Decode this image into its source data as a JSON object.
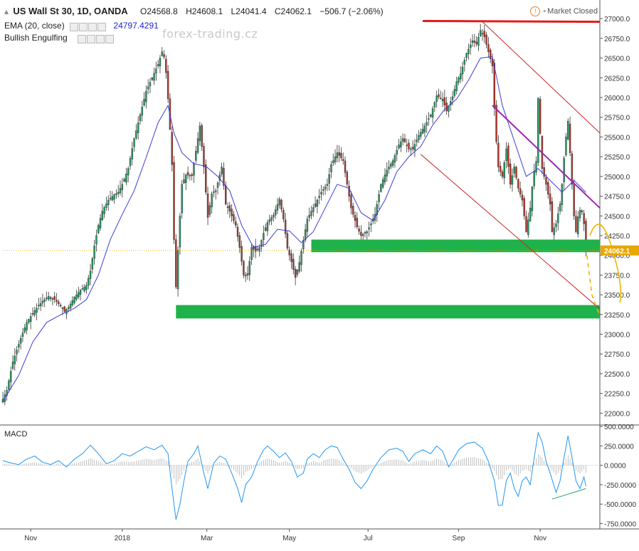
{
  "header": {
    "symbol": "US Wall St 30, 1D, OANDA",
    "open": "O24568.8",
    "high": "H24608.1",
    "low": "L24041.4",
    "close": "C24062.1",
    "change": "−506.7 (−2.06%)",
    "ema_label": "EMA (20, close)",
    "ema_value": "24797.4291",
    "pattern_label": "Bullish Engulfing",
    "watermark": "forex-trading.cz",
    "market_status": "Market Closed"
  },
  "macd": {
    "label": "MACD"
  },
  "colors": {
    "up": "#26a269",
    "down": "#c0392b",
    "ema": "#3c3cd6",
    "macd": "#2196f3",
    "resistance": "#e31b1b",
    "support": "#1fb24a",
    "channel": "#c62828",
    "trend": "#9c27b0",
    "projection": "#f0b400",
    "price_badge": "#e8a800"
  },
  "chart_data": [
    {
      "type": "candlestick",
      "title": "US Wall St 30, 1D, OANDA",
      "ylim": [
        21850,
        27200
      ],
      "y_ticks": [
        22000,
        22250,
        22500,
        22750,
        23000,
        23250,
        23500,
        23750,
        24000,
        24250,
        24500,
        24750,
        25000,
        25250,
        25500,
        25750,
        26000,
        26250,
        26500,
        26750,
        27000
      ],
      "y_tick_labels": [
        "22000.0",
        "22250.0",
        "22500.0",
        "22750.0",
        "23000.0",
        "23250.0",
        "23500.0",
        "23750.0",
        "24000.0",
        "24250.0",
        "24500.0",
        "24750.0",
        "25000.0",
        "25250.0",
        "25500.0",
        "25750.0",
        "26000.0",
        "26250.0",
        "26500.0",
        "26750.0",
        "27000.0"
      ],
      "x_labels": [
        "Nov",
        "2018",
        "Mar",
        "May",
        "Jul",
        "Sep",
        "Nov"
      ],
      "x_label_day_index": [
        28,
        120,
        205,
        288,
        367,
        458,
        540
      ],
      "total_days": 600,
      "current_price": "24062.1",
      "price_path": [
        [
          0,
          22180
        ],
        [
          4,
          22290
        ],
        [
          10,
          22650
        ],
        [
          18,
          22950
        ],
        [
          24,
          23150
        ],
        [
          32,
          23300
        ],
        [
          40,
          23420
        ],
        [
          46,
          23480
        ],
        [
          52,
          23440
        ],
        [
          58,
          23360
        ],
        [
          62,
          23290
        ],
        [
          66,
          23340
        ],
        [
          72,
          23470
        ],
        [
          78,
          23560
        ],
        [
          84,
          23620
        ],
        [
          88,
          23800
        ],
        [
          92,
          24120
        ],
        [
          96,
          24380
        ],
        [
          100,
          24560
        ],
        [
          106,
          24700
        ],
        [
          112,
          24770
        ],
        [
          116,
          24800
        ],
        [
          120,
          24900
        ],
        [
          126,
          25100
        ],
        [
          132,
          25480
        ],
        [
          138,
          25780
        ],
        [
          144,
          26080
        ],
        [
          150,
          26250
        ],
        [
          156,
          26420
        ],
        [
          160,
          26580
        ],
        [
          163,
          26480
        ],
        [
          167,
          25820
        ],
        [
          170,
          25150
        ],
        [
          172,
          24200
        ],
        [
          174,
          23600
        ],
        [
          177,
          24300
        ],
        [
          180,
          24900
        ],
        [
          184,
          25020
        ],
        [
          190,
          25010
        ],
        [
          194,
          25320
        ],
        [
          198,
          25640
        ],
        [
          202,
          25120
        ],
        [
          206,
          24480
        ],
        [
          210,
          24780
        ],
        [
          214,
          24820
        ],
        [
          220,
          25120
        ],
        [
          224,
          24650
        ],
        [
          228,
          24560
        ],
        [
          234,
          24380
        ],
        [
          238,
          24100
        ],
        [
          242,
          23750
        ],
        [
          246,
          23750
        ],
        [
          250,
          24100
        ],
        [
          254,
          24050
        ],
        [
          258,
          24100
        ],
        [
          262,
          24280
        ],
        [
          266,
          24420
        ],
        [
          272,
          24510
        ],
        [
          278,
          24710
        ],
        [
          282,
          24460
        ],
        [
          286,
          24090
        ],
        [
          290,
          23920
        ],
        [
          294,
          23720
        ],
        [
          298,
          23910
        ],
        [
          302,
          24190
        ],
        [
          306,
          24460
        ],
        [
          310,
          24560
        ],
        [
          316,
          24700
        ],
        [
          320,
          24800
        ],
        [
          326,
          24900
        ],
        [
          330,
          25150
        ],
        [
          336,
          25300
        ],
        [
          342,
          25200
        ],
        [
          346,
          24900
        ],
        [
          350,
          24600
        ],
        [
          356,
          24360
        ],
        [
          360,
          24250
        ],
        [
          366,
          24300
        ],
        [
          370,
          24400
        ],
        [
          374,
          24520
        ],
        [
          380,
          24900
        ],
        [
          386,
          25080
        ],
        [
          392,
          25200
        ],
        [
          398,
          25400
        ],
        [
          402,
          25480
        ],
        [
          408,
          25350
        ],
        [
          412,
          25350
        ],
        [
          418,
          25520
        ],
        [
          424,
          25640
        ],
        [
          430,
          25780
        ],
        [
          436,
          26020
        ],
        [
          442,
          25980
        ],
        [
          446,
          25830
        ],
        [
          452,
          26010
        ],
        [
          456,
          26200
        ],
        [
          460,
          26300
        ],
        [
          466,
          26560
        ],
        [
          472,
          26720
        ],
        [
          476,
          26680
        ],
        [
          480,
          26850
        ],
        [
          484,
          26770
        ],
        [
          488,
          26580
        ],
        [
          492,
          26400
        ],
        [
          495,
          25600
        ],
        [
          498,
          25120
        ],
        [
          502,
          25000
        ],
        [
          506,
          25350
        ],
        [
          510,
          24900
        ],
        [
          514,
          25120
        ],
        [
          518,
          24850
        ],
        [
          522,
          24700
        ],
        [
          526,
          24300
        ],
        [
          530,
          24600
        ],
        [
          533,
          25000
        ],
        [
          536,
          25190
        ],
        [
          538,
          25990
        ],
        [
          542,
          25100
        ],
        [
          546,
          24900
        ],
        [
          550,
          24650
        ],
        [
          552,
          24300
        ],
        [
          556,
          24400
        ],
        [
          560,
          24650
        ],
        [
          562,
          24900
        ],
        [
          565,
          25400
        ],
        [
          568,
          25700
        ],
        [
          570,
          25300
        ],
        [
          572,
          24900
        ],
        [
          574,
          24500
        ],
        [
          576,
          24300
        ],
        [
          579,
          24580
        ],
        [
          582,
          24550
        ],
        [
          584,
          24400
        ],
        [
          586,
          24062
        ]
      ],
      "ema_20_path": [
        [
          0,
          22150
        ],
        [
          16,
          22480
        ],
        [
          30,
          22900
        ],
        [
          44,
          23150
        ],
        [
          60,
          23260
        ],
        [
          72,
          23330
        ],
        [
          84,
          23440
        ],
        [
          96,
          23750
        ],
        [
          108,
          24200
        ],
        [
          120,
          24520
        ],
        [
          132,
          24820
        ],
        [
          144,
          25240
        ],
        [
          156,
          25680
        ],
        [
          166,
          25900
        ],
        [
          172,
          25550
        ],
        [
          180,
          25300
        ],
        [
          192,
          25160
        ],
        [
          204,
          25130
        ],
        [
          216,
          25000
        ],
        [
          228,
          24820
        ],
        [
          240,
          24380
        ],
        [
          252,
          24100
        ],
        [
          264,
          24140
        ],
        [
          276,
          24330
        ],
        [
          288,
          24310
        ],
        [
          300,
          24160
        ],
        [
          312,
          24300
        ],
        [
          324,
          24600
        ],
        [
          336,
          24900
        ],
        [
          348,
          24850
        ],
        [
          360,
          24540
        ],
        [
          372,
          24440
        ],
        [
          384,
          24700
        ],
        [
          396,
          25060
        ],
        [
          408,
          25250
        ],
        [
          420,
          25380
        ],
        [
          432,
          25650
        ],
        [
          444,
          25850
        ],
        [
          456,
          25980
        ],
        [
          468,
          26220
        ],
        [
          480,
          26500
        ],
        [
          492,
          26520
        ],
        [
          502,
          25900
        ],
        [
          514,
          25450
        ],
        [
          526,
          25000
        ],
        [
          538,
          25100
        ],
        [
          550,
          24950
        ],
        [
          562,
          24800
        ],
        [
          574,
          24950
        ],
        [
          586,
          24797
        ]
      ],
      "annotations": {
        "resistance_line": [
          [
            422,
            26970
          ],
          [
            600,
            26960
          ]
        ],
        "support_zones": [
          [
            310,
            24200,
            600,
            24040
          ],
          [
            174,
            23370,
            600,
            23200
          ]
        ],
        "channel_upper": [
          [
            482,
            26960
          ],
          [
            600,
            25550
          ]
        ],
        "channel_lower": [
          [
            420,
            25280
          ],
          [
            600,
            23320
          ]
        ],
        "falling_trendline": [
          [
            492,
            25900
          ],
          [
            600,
            24600
          ]
        ],
        "projection": [
          [
            590,
            24250
          ],
          [
            600,
            24600
          ],
          [
            612,
            24100
          ],
          [
            620,
            23400
          ]
        ]
      }
    },
    {
      "type": "line",
      "title": "MACD",
      "ylim": [
        -820,
        520
      ],
      "y_ticks": [
        500,
        250,
        0,
        -250,
        -500,
        -750
      ],
      "y_tick_labels": [
        "500.0000",
        "250.0000",
        "0.0000",
        "-250.0000",
        "-500.0000",
        "-750.0000"
      ],
      "macd_path": [
        [
          0,
          60
        ],
        [
          8,
          30
        ],
        [
          16,
          10
        ],
        [
          24,
          80
        ],
        [
          32,
          120
        ],
        [
          40,
          40
        ],
        [
          48,
          10
        ],
        [
          56,
          60
        ],
        [
          64,
          -20
        ],
        [
          72,
          80
        ],
        [
          80,
          150
        ],
        [
          88,
          260
        ],
        [
          96,
          150
        ],
        [
          104,
          20
        ],
        [
          112,
          60
        ],
        [
          120,
          150
        ],
        [
          128,
          120
        ],
        [
          136,
          180
        ],
        [
          144,
          240
        ],
        [
          152,
          200
        ],
        [
          160,
          260
        ],
        [
          166,
          150
        ],
        [
          170,
          -300
        ],
        [
          174,
          -700
        ],
        [
          178,
          -500
        ],
        [
          182,
          -200
        ],
        [
          186,
          50
        ],
        [
          192,
          150
        ],
        [
          196,
          250
        ],
        [
          202,
          -100
        ],
        [
          206,
          -300
        ],
        [
          212,
          30
        ],
        [
          218,
          120
        ],
        [
          224,
          80
        ],
        [
          230,
          -100
        ],
        [
          236,
          -300
        ],
        [
          240,
          -480
        ],
        [
          244,
          -250
        ],
        [
          250,
          -150
        ],
        [
          256,
          50
        ],
        [
          262,
          200
        ],
        [
          266,
          250
        ],
        [
          272,
          180
        ],
        [
          278,
          100
        ],
        [
          284,
          160
        ],
        [
          290,
          50
        ],
        [
          296,
          -150
        ],
        [
          302,
          -100
        ],
        [
          306,
          80
        ],
        [
          312,
          150
        ],
        [
          318,
          100
        ],
        [
          324,
          200
        ],
        [
          330,
          250
        ],
        [
          336,
          230
        ],
        [
          342,
          80
        ],
        [
          348,
          -50
        ],
        [
          354,
          -220
        ],
        [
          360,
          -300
        ],
        [
          366,
          -200
        ],
        [
          372,
          -50
        ],
        [
          380,
          100
        ],
        [
          388,
          200
        ],
        [
          396,
          220
        ],
        [
          402,
          180
        ],
        [
          408,
          50
        ],
        [
          414,
          150
        ],
        [
          422,
          200
        ],
        [
          430,
          150
        ],
        [
          436,
          250
        ],
        [
          442,
          180
        ],
        [
          448,
          -20
        ],
        [
          452,
          60
        ],
        [
          458,
          200
        ],
        [
          466,
          280
        ],
        [
          474,
          300
        ],
        [
          482,
          220
        ],
        [
          488,
          50
        ],
        [
          494,
          -200
        ],
        [
          498,
          -520
        ],
        [
          502,
          -510
        ],
        [
          506,
          -200
        ],
        [
          510,
          -100
        ],
        [
          514,
          -300
        ],
        [
          518,
          -400
        ],
        [
          522,
          -200
        ],
        [
          526,
          -150
        ],
        [
          530,
          -250
        ],
        [
          534,
          100
        ],
        [
          538,
          420
        ],
        [
          542,
          300
        ],
        [
          546,
          50
        ],
        [
          550,
          -100
        ],
        [
          556,
          -350
        ],
        [
          560,
          -200
        ],
        [
          564,
          100
        ],
        [
          568,
          380
        ],
        [
          572,
          100
        ],
        [
          576,
          -200
        ],
        [
          580,
          -300
        ],
        [
          584,
          -150
        ],
        [
          586,
          -270
        ]
      ],
      "divergence_line": [
        [
          552,
          -435
        ],
        [
          586,
          -300
        ]
      ]
    }
  ]
}
